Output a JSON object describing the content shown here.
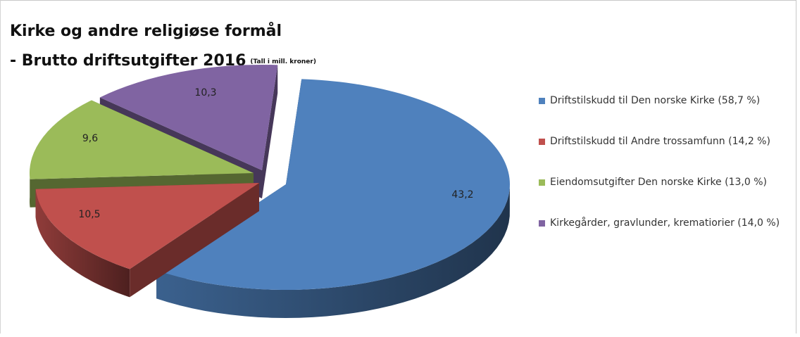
{
  "chart_data": {
    "type": "pie",
    "title": "Kirke og andre religiøse formål",
    "subtitle": "- Brutto driftsutgifter 2016",
    "unit_note": "(Tall i mill. kroner)",
    "slices": [
      {
        "label": "Driftstilskudd til Den norske Kirke (58,7 %)",
        "value": 43.2,
        "value_label": "43,2",
        "color": "#4f81bd"
      },
      {
        "label": "Driftstilskudd til Andre trossamfunn (14,2 %)",
        "value": 10.5,
        "value_label": "10,5",
        "color": "#c0504d"
      },
      {
        "label": "Eiendomsutgifter Den norske Kirke (13,0 %)",
        "value": 9.6,
        "value_label": "9,6",
        "color": "#9bbb59"
      },
      {
        "label": "Kirkegårder, gravlunder, krematiorier (14,0 %)",
        "value": 10.3,
        "value_label": "10,3",
        "color": "#8064a2"
      }
    ],
    "legend_position": "right",
    "style": "3d-exploded"
  }
}
